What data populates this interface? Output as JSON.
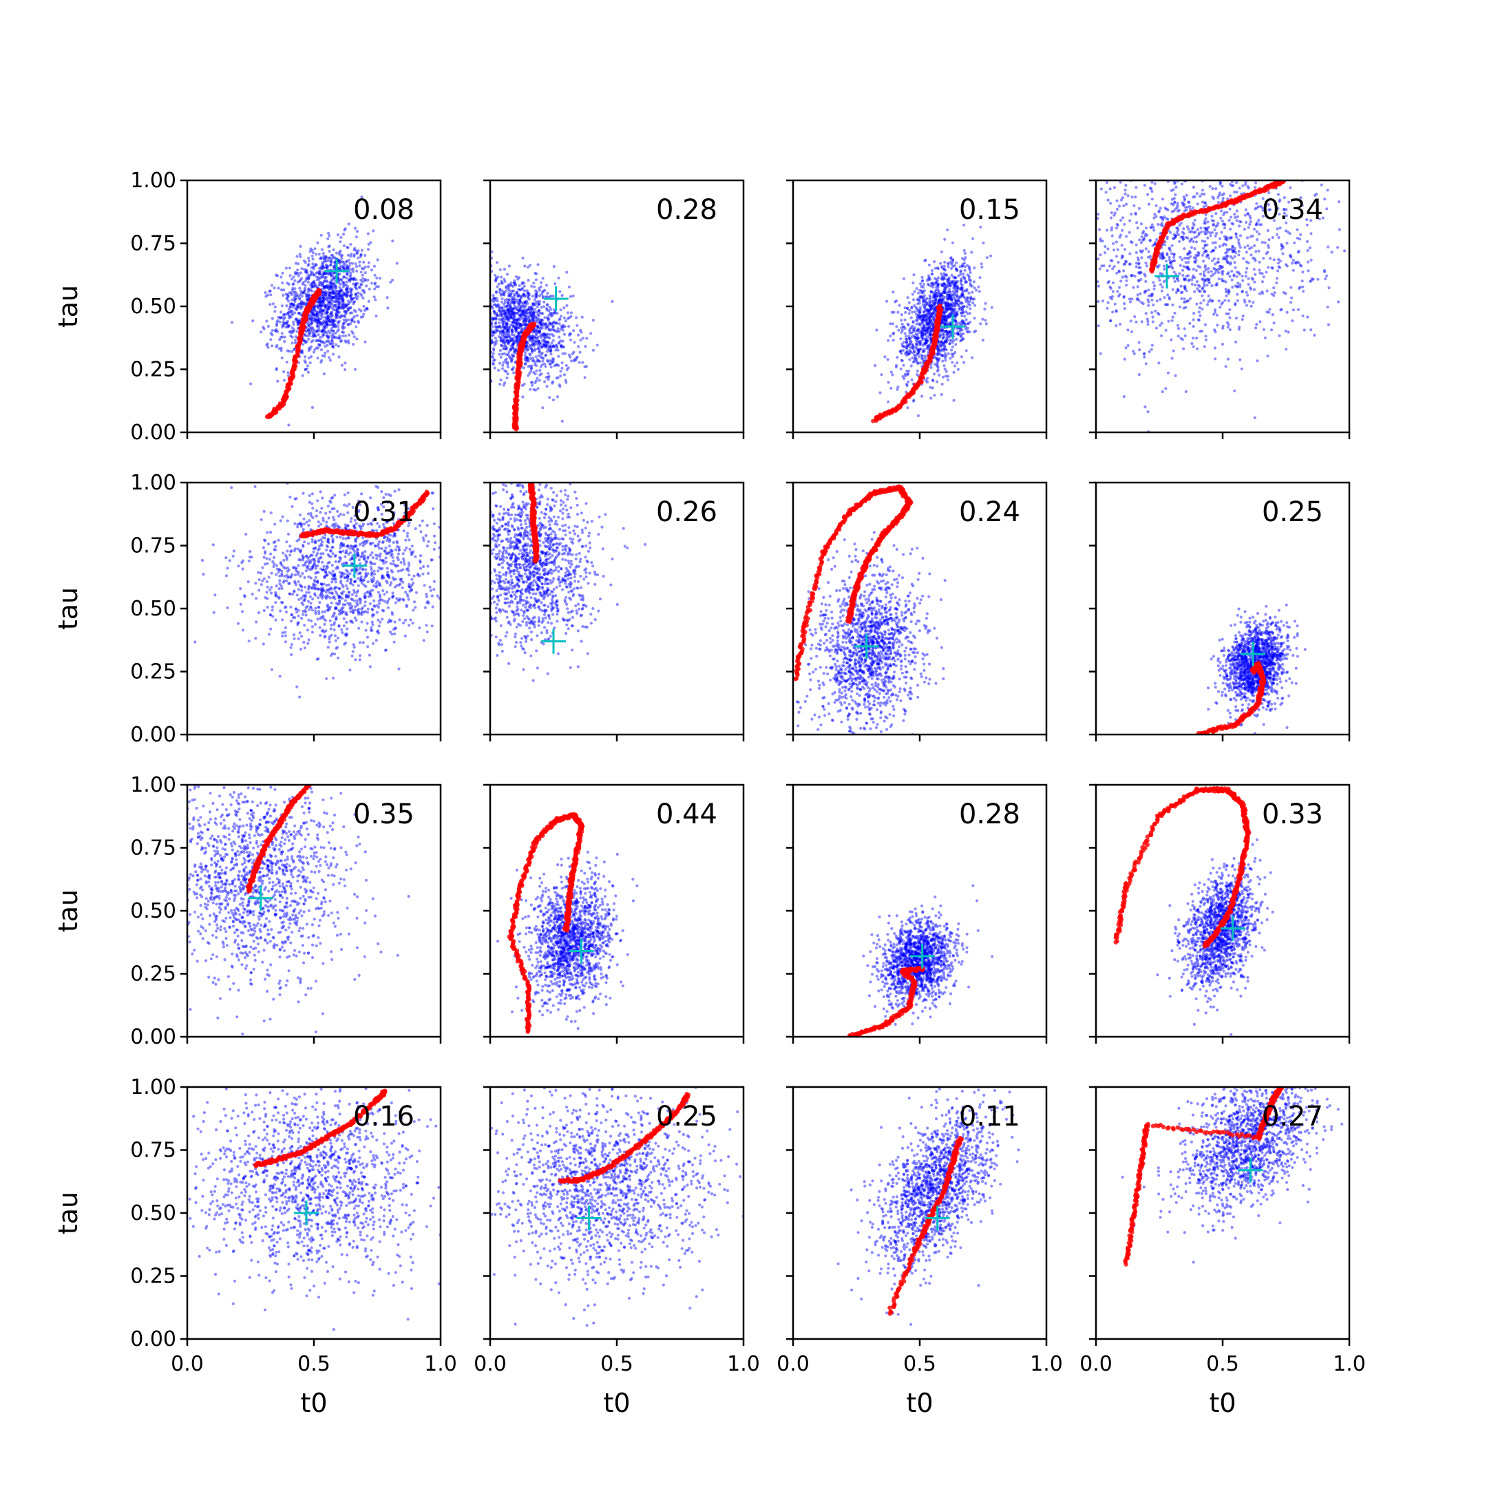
{
  "chart_data": {
    "type": "scatter",
    "layout": "4x4 grid of subplots, shared axes",
    "xlabel": "t0",
    "ylabel": "tau",
    "xlim": [
      0,
      1
    ],
    "ylim": [
      0,
      1
    ],
    "xticks": [
      "0.0",
      "0.5",
      "1.0"
    ],
    "yticks": [
      "0.00",
      "0.25",
      "0.50",
      "0.75",
      "1.00"
    ],
    "colors": {
      "samples": "#0000ff",
      "trace": "#ff0000",
      "truth": "#00bfbf"
    },
    "panels": [
      {
        "annotation": "0.08",
        "truth": [
          0.59,
          0.64
        ],
        "cloud": {
          "cx": 0.54,
          "cy": 0.52,
          "sx": 0.09,
          "sy": 0.11,
          "rho": 0.3
        },
        "trace": [
          [
            0.32,
            0.06
          ],
          [
            0.38,
            0.12
          ],
          [
            0.42,
            0.25
          ],
          [
            0.45,
            0.4
          ],
          [
            0.47,
            0.48
          ],
          [
            0.5,
            0.53
          ],
          [
            0.52,
            0.56
          ]
        ]
      },
      {
        "annotation": "0.28",
        "truth": [
          0.26,
          0.53
        ],
        "cloud": {
          "cx": 0.12,
          "cy": 0.42,
          "sx": 0.1,
          "sy": 0.1,
          "rho": -0.3
        },
        "trace": [
          [
            0.1,
            0.01
          ],
          [
            0.1,
            0.1
          ],
          [
            0.11,
            0.22
          ],
          [
            0.12,
            0.33
          ],
          [
            0.14,
            0.39
          ],
          [
            0.17,
            0.43
          ]
        ]
      },
      {
        "annotation": "0.15",
        "truth": [
          0.63,
          0.42
        ],
        "cloud": {
          "cx": 0.57,
          "cy": 0.45,
          "sx": 0.07,
          "sy": 0.11,
          "rho": 0.4
        },
        "trace": [
          [
            0.32,
            0.05
          ],
          [
            0.42,
            0.1
          ],
          [
            0.5,
            0.2
          ],
          [
            0.55,
            0.32
          ],
          [
            0.57,
            0.42
          ],
          [
            0.58,
            0.5
          ]
        ]
      },
      {
        "annotation": "0.34",
        "truth": [
          0.28,
          0.62
        ],
        "cloud": {
          "cx": 0.38,
          "cy": 0.72,
          "sx": 0.25,
          "sy": 0.2,
          "rho": 0.1
        },
        "trace": [
          [
            0.22,
            0.64
          ],
          [
            0.24,
            0.72
          ],
          [
            0.28,
            0.82
          ],
          [
            0.35,
            0.86
          ],
          [
            0.5,
            0.9
          ],
          [
            0.6,
            0.94
          ],
          [
            0.7,
            0.98
          ],
          [
            0.74,
            1.0
          ]
        ]
      },
      {
        "annotation": "0.31",
        "truth": [
          0.66,
          0.67
        ],
        "cloud": {
          "cx": 0.62,
          "cy": 0.65,
          "sx": 0.18,
          "sy": 0.15,
          "rho": 0.1
        },
        "trace": [
          [
            0.45,
            0.79
          ],
          [
            0.55,
            0.81
          ],
          [
            0.65,
            0.8
          ],
          [
            0.75,
            0.79
          ],
          [
            0.82,
            0.82
          ],
          [
            0.88,
            0.88
          ],
          [
            0.95,
            0.96
          ]
        ]
      },
      {
        "annotation": "0.26",
        "truth": [
          0.25,
          0.37
        ],
        "cloud": {
          "cx": 0.15,
          "cy": 0.68,
          "sx": 0.12,
          "sy": 0.16,
          "rho": 0.0
        },
        "trace": [
          [
            0.18,
            0.69
          ],
          [
            0.18,
            0.76
          ],
          [
            0.17,
            0.84
          ],
          [
            0.17,
            0.92
          ],
          [
            0.16,
            1.0
          ]
        ]
      },
      {
        "annotation": "0.24",
        "truth": [
          0.29,
          0.35
        ],
        "cloud": {
          "cx": 0.3,
          "cy": 0.35,
          "sx": 0.1,
          "sy": 0.15,
          "rho": 0.1
        },
        "trace": [
          [
            0.22,
            0.45
          ],
          [
            0.24,
            0.55
          ],
          [
            0.27,
            0.64
          ],
          [
            0.31,
            0.72
          ],
          [
            0.36,
            0.8
          ],
          [
            0.42,
            0.86
          ],
          [
            0.46,
            0.92
          ],
          [
            0.42,
            0.98
          ],
          [
            0.32,
            0.96
          ],
          [
            0.22,
            0.88
          ],
          [
            0.12,
            0.72
          ],
          [
            0.05,
            0.45
          ],
          [
            0.01,
            0.22
          ]
        ]
      },
      {
        "annotation": "0.25",
        "truth": [
          0.62,
          0.32
        ],
        "cloud": {
          "cx": 0.63,
          "cy": 0.28,
          "sx": 0.06,
          "sy": 0.08,
          "rho": 0.2
        },
        "trace": [
          [
            0.4,
            0.0
          ],
          [
            0.55,
            0.04
          ],
          [
            0.64,
            0.12
          ],
          [
            0.66,
            0.22
          ],
          [
            0.64,
            0.28
          ],
          [
            0.62,
            0.25
          ]
        ]
      },
      {
        "annotation": "0.35",
        "truth": [
          0.29,
          0.55
        ],
        "cloud": {
          "cx": 0.27,
          "cy": 0.62,
          "sx": 0.18,
          "sy": 0.2,
          "rho": 0.0
        },
        "trace": [
          [
            0.24,
            0.58
          ],
          [
            0.27,
            0.67
          ],
          [
            0.31,
            0.76
          ],
          [
            0.36,
            0.84
          ],
          [
            0.41,
            0.92
          ],
          [
            0.48,
            1.0
          ]
        ]
      },
      {
        "annotation": "0.44",
        "truth": [
          0.36,
          0.34
        ],
        "cloud": {
          "cx": 0.32,
          "cy": 0.38,
          "sx": 0.08,
          "sy": 0.12,
          "rho": 0.1
        },
        "trace": [
          [
            0.3,
            0.42
          ],
          [
            0.31,
            0.52
          ],
          [
            0.32,
            0.62
          ],
          [
            0.34,
            0.72
          ],
          [
            0.36,
            0.84
          ],
          [
            0.33,
            0.88
          ],
          [
            0.26,
            0.86
          ],
          [
            0.18,
            0.78
          ],
          [
            0.12,
            0.6
          ],
          [
            0.08,
            0.4
          ],
          [
            0.15,
            0.2
          ],
          [
            0.15,
            0.02
          ]
        ]
      },
      {
        "annotation": "0.28",
        "truth": [
          0.51,
          0.32
        ],
        "cloud": {
          "cx": 0.49,
          "cy": 0.3,
          "sx": 0.07,
          "sy": 0.08,
          "rho": 0.2
        },
        "trace": [
          [
            0.22,
            0.0
          ],
          [
            0.35,
            0.04
          ],
          [
            0.46,
            0.12
          ],
          [
            0.48,
            0.22
          ],
          [
            0.43,
            0.26
          ],
          [
            0.51,
            0.27
          ]
        ]
      },
      {
        "annotation": "0.33",
        "truth": [
          0.54,
          0.43
        ],
        "cloud": {
          "cx": 0.49,
          "cy": 0.42,
          "sx": 0.07,
          "sy": 0.11,
          "rho": 0.3
        },
        "trace": [
          [
            0.43,
            0.36
          ],
          [
            0.48,
            0.42
          ],
          [
            0.53,
            0.5
          ],
          [
            0.57,
            0.65
          ],
          [
            0.6,
            0.8
          ],
          [
            0.58,
            0.92
          ],
          [
            0.52,
            0.98
          ],
          [
            0.4,
            0.98
          ],
          [
            0.25,
            0.88
          ],
          [
            0.12,
            0.6
          ],
          [
            0.08,
            0.38
          ]
        ]
      },
      {
        "annotation": "0.16",
        "truth": [
          0.47,
          0.5
        ],
        "cloud": {
          "cx": 0.48,
          "cy": 0.62,
          "sx": 0.22,
          "sy": 0.18,
          "rho": 0.0
        },
        "trace": [
          [
            0.27,
            0.69
          ],
          [
            0.35,
            0.71
          ],
          [
            0.45,
            0.74
          ],
          [
            0.55,
            0.8
          ],
          [
            0.65,
            0.86
          ],
          [
            0.75,
            0.95
          ],
          [
            0.78,
            0.98
          ]
        ]
      },
      {
        "annotation": "0.25",
        "truth": [
          0.39,
          0.48
        ],
        "cloud": {
          "cx": 0.45,
          "cy": 0.6,
          "sx": 0.2,
          "sy": 0.18,
          "rho": 0.0
        },
        "trace": [
          [
            0.28,
            0.63
          ],
          [
            0.35,
            0.63
          ],
          [
            0.45,
            0.67
          ],
          [
            0.55,
            0.74
          ],
          [
            0.65,
            0.82
          ],
          [
            0.75,
            0.92
          ],
          [
            0.78,
            0.97
          ]
        ]
      },
      {
        "annotation": "0.11",
        "truth": [
          0.57,
          0.48
        ],
        "cloud": {
          "cx": 0.56,
          "cy": 0.6,
          "sx": 0.11,
          "sy": 0.15,
          "rho": 0.5
        },
        "trace": [
          [
            0.38,
            0.1
          ],
          [
            0.48,
            0.35
          ],
          [
            0.55,
            0.5
          ],
          [
            0.6,
            0.6
          ],
          [
            0.63,
            0.7
          ],
          [
            0.66,
            0.8
          ]
        ]
      },
      {
        "annotation": "0.27",
        "truth": [
          0.61,
          0.67
        ],
        "cloud": {
          "cx": 0.6,
          "cy": 0.78,
          "sx": 0.12,
          "sy": 0.14,
          "rho": 0.4
        },
        "trace": [
          [
            0.12,
            0.3
          ],
          [
            0.15,
            0.5
          ],
          [
            0.18,
            0.7
          ],
          [
            0.2,
            0.85
          ],
          [
            0.64,
            0.8
          ],
          [
            0.67,
            0.88
          ],
          [
            0.7,
            0.95
          ],
          [
            0.73,
            1.0
          ]
        ]
      }
    ]
  }
}
